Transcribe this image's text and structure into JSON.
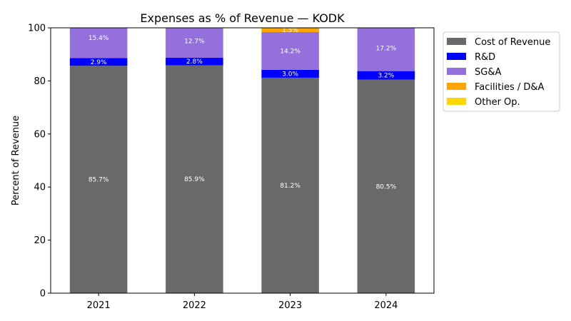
{
  "chart_data": {
    "type": "bar",
    "stacked": true,
    "title": "Expenses as % of Revenue — KODK",
    "xlabel": "",
    "ylabel": "Percent of Revenue",
    "ylim": [
      0,
      100
    ],
    "yticks": [
      0,
      20,
      40,
      60,
      80,
      100
    ],
    "categories": [
      "2021",
      "2022",
      "2023",
      "2024"
    ],
    "legend_position": "upper-right-outside",
    "series": [
      {
        "name": "Cost of Revenue",
        "color": "#696969",
        "values": [
          85.7,
          85.9,
          81.2,
          80.5
        ],
        "labels": [
          "85.7%",
          "85.9%",
          "81.2%",
          "80.5%"
        ]
      },
      {
        "name": "R&D",
        "color": "#0000ff",
        "values": [
          2.9,
          2.8,
          3.0,
          3.2
        ],
        "labels": [
          "2.9%",
          "2.8%",
          "3.0%",
          "3.2%"
        ]
      },
      {
        "name": "SG&A",
        "color": "#9370db",
        "values": [
          15.4,
          12.7,
          14.2,
          17.2
        ],
        "labels": [
          "15.4%",
          "12.7%",
          "14.2%",
          "17.2%"
        ]
      },
      {
        "name": "Facilities / D&A",
        "color": "#ffa500",
        "values": [
          0,
          0,
          1.5,
          0
        ],
        "labels": [
          "",
          "",
          "1.5%",
          ""
        ]
      },
      {
        "name": "Other Op.",
        "color": "#ffd700",
        "values": [
          0,
          0,
          0,
          0
        ],
        "labels": [
          "",
          "",
          "",
          ""
        ]
      }
    ]
  }
}
